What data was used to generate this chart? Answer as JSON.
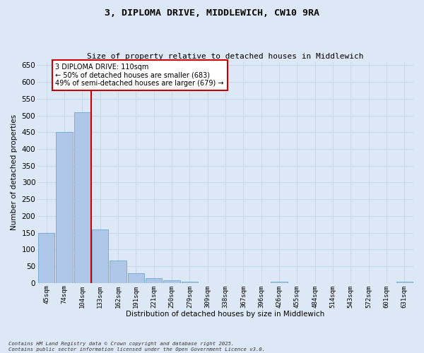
{
  "title_line1": "3, DIPLOMA DRIVE, MIDDLEWICH, CW10 9RA",
  "title_line2": "Size of property relative to detached houses in Middlewich",
  "xlabel": "Distribution of detached houses by size in Middlewich",
  "ylabel": "Number of detached properties",
  "categories": [
    "45sqm",
    "74sqm",
    "104sqm",
    "133sqm",
    "162sqm",
    "191sqm",
    "221sqm",
    "250sqm",
    "279sqm",
    "309sqm",
    "338sqm",
    "367sqm",
    "396sqm",
    "426sqm",
    "455sqm",
    "484sqm",
    "514sqm",
    "543sqm",
    "572sqm",
    "601sqm",
    "631sqm"
  ],
  "values": [
    150,
    450,
    510,
    160,
    67,
    30,
    15,
    8,
    3,
    0,
    0,
    0,
    0,
    3,
    0,
    0,
    0,
    0,
    0,
    0,
    4
  ],
  "bar_color": "#aec6e8",
  "bar_edge_color": "#5a9fd4",
  "grid_color": "#c8d8e8",
  "background_color": "#dce8f5",
  "red_line_x": 2.5,
  "annotation_text": "3 DIPLOMA DRIVE: 110sqm\n← 50% of detached houses are smaller (683)\n49% of semi-detached houses are larger (679) →",
  "annotation_box_color": "#ffffff",
  "annotation_box_edge": "#cc0000",
  "red_line_color": "#cc0000",
  "ylim": [
    0,
    660
  ],
  "yticks": [
    0,
    50,
    100,
    150,
    200,
    250,
    300,
    350,
    400,
    450,
    500,
    550,
    600,
    650
  ],
  "footer_line1": "Contains HM Land Registry data © Crown copyright and database right 2025.",
  "footer_line2": "Contains public sector information licensed under the Open Government Licence v3.0."
}
